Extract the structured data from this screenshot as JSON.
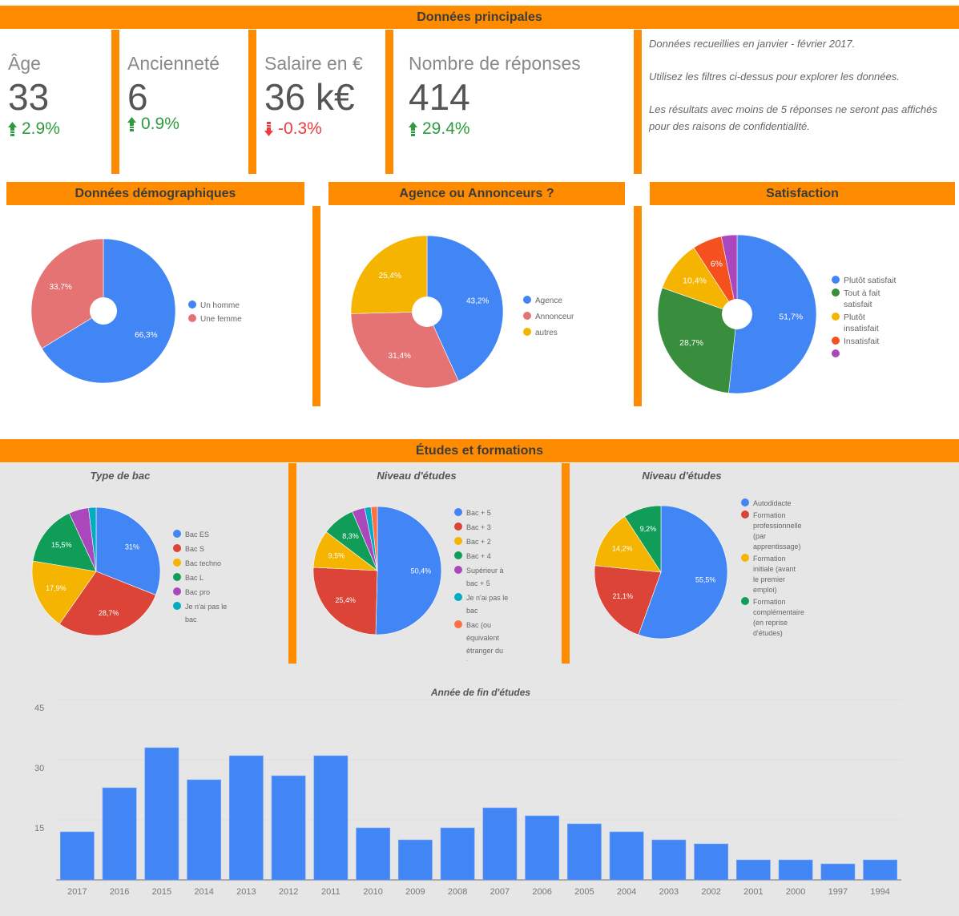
{
  "sections": {
    "main": "Données principales",
    "demographics": "Données démographiques",
    "agency": "Agence ou Annonceurs ?",
    "satisfaction": "Satisfaction",
    "studies": "Études et formations"
  },
  "kpis": [
    {
      "label": "Âge",
      "value": "33",
      "delta": "2.9%",
      "direction": "up"
    },
    {
      "label": "Ancienneté",
      "value": "6",
      "delta": "0.9%",
      "direction": "up"
    },
    {
      "label": "Salaire en €",
      "value": "36 k€",
      "delta": "-0.3%",
      "direction": "down"
    },
    {
      "label": "Nombre de réponses",
      "value": "414",
      "delta": "29.4%",
      "direction": "up"
    }
  ],
  "notes": [
    "Données recueillies en janvier - février 2017.",
    "Utilisez les filtres ci-dessus pour explorer les données.",
    "Les résultats avec moins de 5 réponses ne seront pas affichés pour des raisons de confidentialité."
  ],
  "colors": {
    "accent": "#ff8c00",
    "up": "#2e9b3f",
    "down": "#ee3b3b",
    "bar": "#4285f4"
  },
  "chart_data": [
    {
      "id": "gender",
      "type": "pie",
      "title": "Données démographiques",
      "donut": true,
      "labels": [
        "Un homme",
        "Une femme"
      ],
      "values": [
        66.3,
        33.7
      ],
      "data_labels": [
        "66,3%",
        "33,7%"
      ],
      "colors": [
        "#4285f4",
        "#e57373"
      ],
      "legend": "right"
    },
    {
      "id": "agency",
      "type": "pie",
      "title": "Agence ou Annonceurs ?",
      "donut": true,
      "labels": [
        "Agence",
        "Annonceur",
        "autres"
      ],
      "values": [
        43.2,
        31.4,
        25.4
      ],
      "data_labels": [
        "43,2%",
        "31,4%",
        "25,4%"
      ],
      "colors": [
        "#4285f4",
        "#e57373",
        "#f4b400"
      ],
      "legend": "right"
    },
    {
      "id": "satisfaction",
      "type": "pie",
      "title": "Satisfaction",
      "donut": true,
      "labels": [
        "Plutôt satisfait",
        "Tout à fait satisfait",
        "Plutôt insatisfait",
        "Insatisfait",
        ""
      ],
      "values": [
        51.7,
        28.7,
        10.4,
        6.0,
        3.2
      ],
      "data_labels": [
        "51,7%",
        "28,7%",
        "10,4%",
        "6%",
        ""
      ],
      "colors": [
        "#4285f4",
        "#388e3c",
        "#f4b400",
        "#f4511e",
        "#ab47bc"
      ],
      "legend": "right"
    },
    {
      "id": "bac",
      "type": "pie",
      "title": "Type de bac",
      "donut": false,
      "labels": [
        "Bac ES",
        "Bac S",
        "Bac techno",
        "Bac L",
        "Bac pro",
        "Je n'ai pas le bac"
      ],
      "values": [
        31.0,
        28.7,
        17.9,
        15.5,
        5.0,
        1.9
      ],
      "data_labels": [
        "31%",
        "28,7%",
        "17,9%",
        "15,5%",
        "",
        ""
      ],
      "colors": [
        "#4285f4",
        "#db4437",
        "#f4b400",
        "#0f9d58",
        "#ab47bc",
        "#00acc1"
      ],
      "legend": "right"
    },
    {
      "id": "level",
      "type": "pie",
      "title": "Niveau d'études",
      "donut": false,
      "labels": [
        "Bac + 5",
        "Bac + 3",
        "Bac + 2",
        "Bac + 4",
        "Supérieur à bac + 5",
        "Je n'ai pas le bac",
        "Bac (ou équivalent étranger du b..."
      ],
      "values": [
        50.4,
        25.4,
        9.5,
        8.3,
        3.2,
        1.6,
        1.6
      ],
      "data_labels": [
        "50,4%",
        "25,4%",
        "9,5%",
        "8,3%",
        "",
        "",
        ""
      ],
      "colors": [
        "#4285f4",
        "#db4437",
        "#f4b400",
        "#0f9d58",
        "#ab47bc",
        "#00acc1",
        "#ff7043"
      ],
      "legend": "right"
    },
    {
      "id": "training",
      "type": "pie",
      "title": "Niveau d'études",
      "donut": false,
      "labels": [
        "Autodidacte",
        "Formation professionnelle (par apprentissage)",
        "Formation initiale (avant le premier emploi)",
        "Formation complémentaire (en reprise d'études)"
      ],
      "values": [
        55.5,
        21.1,
        14.2,
        9.2
      ],
      "data_labels": [
        "55,5%",
        "21,1%",
        "14,2%",
        "9,2%"
      ],
      "colors": [
        "#4285f4",
        "#db4437",
        "#f4b400",
        "#0f9d58"
      ],
      "legend": "right"
    },
    {
      "id": "graduation_year",
      "type": "bar",
      "title": "Année de fin d'études",
      "xlabel": "",
      "ylabel": "",
      "categories": [
        "2017",
        "2016",
        "2015",
        "2014",
        "2013",
        "2012",
        "2011",
        "2010",
        "2009",
        "2008",
        "2007",
        "2006",
        "2005",
        "2004",
        "2003",
        "2002",
        "2001",
        "2000",
        "1997",
        "1994"
      ],
      "values": [
        12,
        23,
        33,
        25,
        31,
        26,
        31,
        13,
        10,
        13,
        18,
        16,
        14,
        12,
        10,
        9,
        5,
        5,
        4,
        5
      ],
      "yticks": [
        "15",
        "30",
        "45"
      ],
      "ylim": [
        0,
        45
      ],
      "grid": true,
      "color": "#4285f4"
    }
  ]
}
